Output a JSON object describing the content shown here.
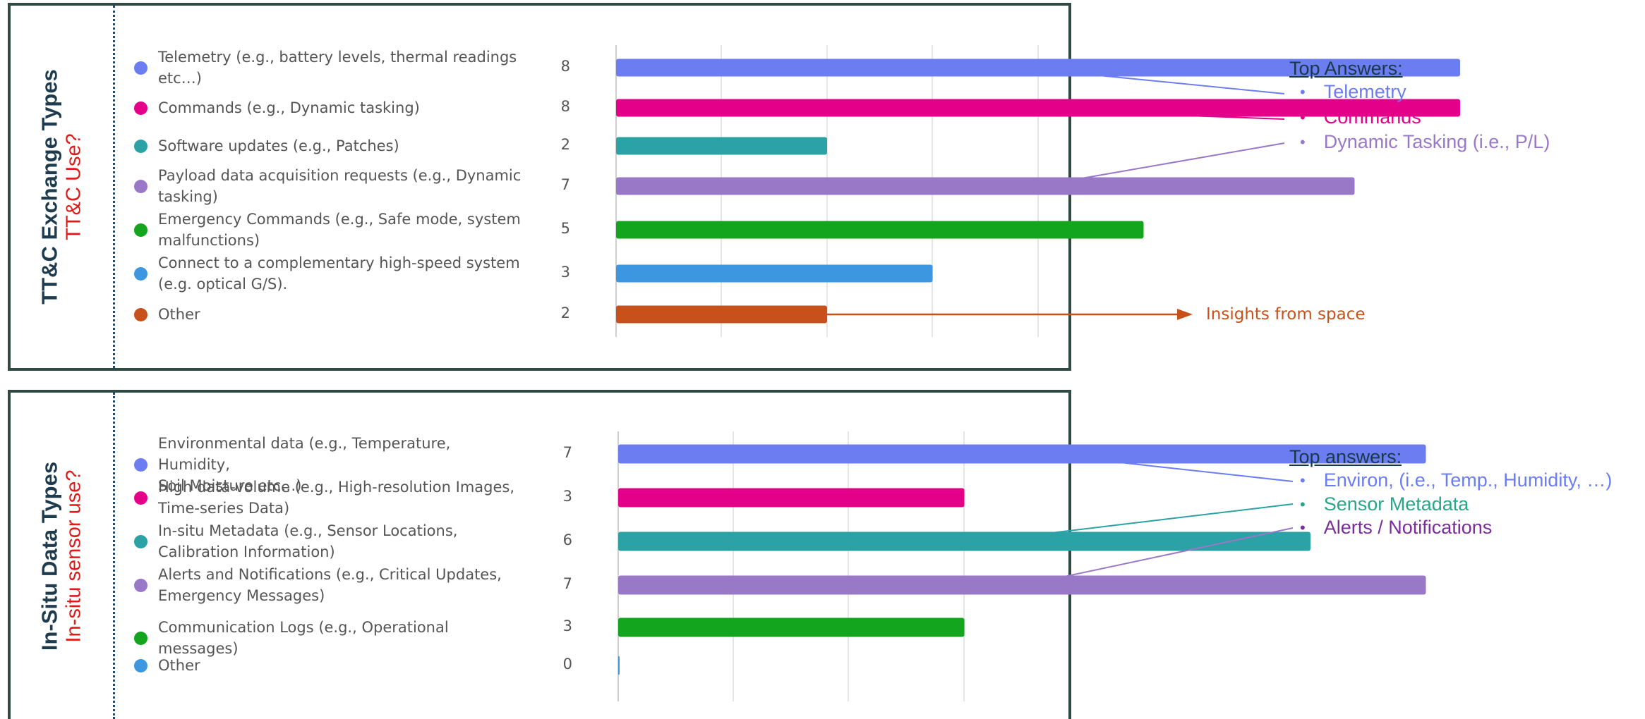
{
  "panel1": {
    "title": "TT&C Exchange Types",
    "subtitle": "TT&C Use?",
    "items": [
      {
        "label_line1": "Telemetry (e.g., battery levels, thermal readings",
        "label_line2": "etc…)",
        "color": "#6b7df0",
        "count": "8"
      },
      {
        "label_line1": "Commands (e.g., Dynamic tasking)",
        "label_line2": "",
        "color": "#e5008a",
        "count": "8"
      },
      {
        "label_line1": "Software updates (e.g., Patches)",
        "label_line2": "",
        "color": "#2aa2a6",
        "count": "2"
      },
      {
        "label_line1": "Payload data acquisition requests (e.g., Dynamic",
        "label_line2": "tasking)",
        "color": "#9a78c8",
        "count": "7"
      },
      {
        "label_line1": "Emergency Commands (e.g., Safe mode, system",
        "label_line2": "malfunctions)",
        "color": "#13a51e",
        "count": "5"
      },
      {
        "label_line1": "Connect to a complementary high-speed system",
        "label_line2": "(e.g. optical G/S).",
        "color": "#3c97e0",
        "count": "3"
      },
      {
        "label_line1": "Other",
        "label_line2": "",
        "color": "#c8511b",
        "count": "2"
      }
    ],
    "annotation": {
      "heading": "Top Answers:",
      "items": [
        {
          "text": "Telemetry",
          "color": "#6b7df0"
        },
        {
          "text": "Commands",
          "color": "#e5008a"
        },
        {
          "text": "Dynamic Tasking (i.e., P/L)",
          "color": "#9a78c8"
        }
      ]
    },
    "insight": "Insights from space"
  },
  "panel2": {
    "title": "In-Situ Data Types",
    "subtitle": "In-situ sensor use?",
    "items": [
      {
        "label_line1": "Environmental data (e.g., Temperature, Humidity,",
        "label_line2": "Soil Moisture etc…)",
        "color": "#6b7df0",
        "count": "7"
      },
      {
        "label_line1": "High data-volume (e.g., High-resolution Images,",
        "label_line2": "Time-series Data)",
        "color": "#e5008a",
        "count": "3"
      },
      {
        "label_line1": "In-situ Metadata (e.g., Sensor Locations,",
        "label_line2": "Calibration Information)",
        "color": "#2aa2a6",
        "count": "6"
      },
      {
        "label_line1": "Alerts and Notifications (e.g., Critical Updates,",
        "label_line2": "Emergency Messages)",
        "color": "#9a78c8",
        "count": "7"
      },
      {
        "label_line1": "Communication Logs (e.g., Operational messages)",
        "label_line2": "",
        "color": "#13a51e",
        "count": "3"
      },
      {
        "label_line1": "Other",
        "label_line2": "",
        "color": "#3c97e0",
        "count": "0"
      }
    ],
    "annotation": {
      "heading": "Top answers:",
      "items": [
        {
          "text": "Environ, (i.e., Temp., Humidity, …)",
          "color": "#6b7df0"
        },
        {
          "text": "Sensor Metadata",
          "color": "#2aa78a"
        },
        {
          "text": "Alerts / Notifications",
          "color": "#7a2c9c"
        }
      ]
    }
  },
  "chart_data": [
    {
      "type": "bar",
      "orientation": "horizontal",
      "categories": [
        "Telemetry (e.g., battery levels, thermal readings etc…)",
        "Commands (e.g., Dynamic tasking)",
        "Software updates (e.g., Patches)",
        "Payload data acquisition requests (e.g., Dynamic tasking)",
        "Emergency Commands (e.g., Safe mode, system malfunctions)",
        "Connect to a complementary high-speed system (e.g. optical G/S).",
        "Other"
      ],
      "values": [
        8,
        8,
        2,
        7,
        5,
        3,
        2
      ],
      "colors": [
        "#6b7df0",
        "#e5008a",
        "#2aa2a6",
        "#9a78c8",
        "#13a51e",
        "#3c97e0",
        "#c8511b"
      ],
      "title": "",
      "xlim": [
        0,
        8
      ],
      "grid": true
    },
    {
      "type": "bar",
      "orientation": "horizontal",
      "categories": [
        "Environmental data (e.g., Temperature, Humidity, Soil Moisture etc…)",
        "High data-volume (e.g., High-resolution Images, Time-series Data)",
        "In-situ Metadata (e.g., Sensor Locations, Calibration Information)",
        "Alerts and Notifications (e.g., Critical Updates, Emergency Messages)",
        "Communication Logs (e.g., Operational messages)",
        "Other"
      ],
      "values": [
        7,
        3,
        6,
        7,
        3,
        0
      ],
      "colors": [
        "#6b7df0",
        "#e5008a",
        "#2aa2a6",
        "#9a78c8",
        "#13a51e",
        "#3c97e0"
      ],
      "title": "",
      "xlim": [
        0,
        7
      ],
      "grid": true
    }
  ]
}
